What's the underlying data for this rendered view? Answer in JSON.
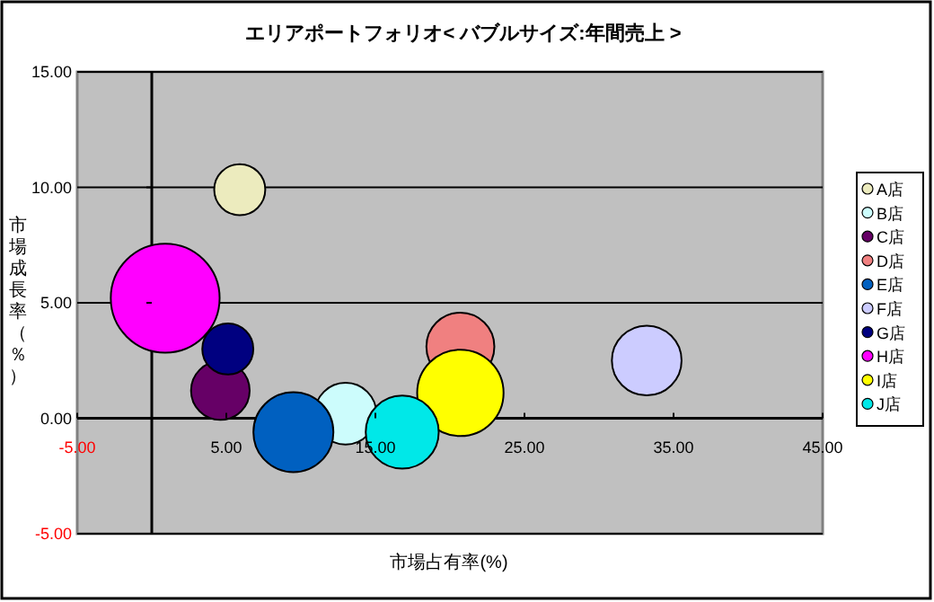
{
  "chart_data": {
    "type": "bubble",
    "title": "エリアポートフォリオ< バブルサイズ:年間売上 >",
    "xlabel": "市場占有率(%)",
    "ylabel": "市場成長率（％）",
    "xlim": [
      -5,
      45
    ],
    "ylim": [
      -5,
      15
    ],
    "xticks": [
      {
        "value": -5,
        "label": "-5.00"
      },
      {
        "value": 5,
        "label": "5.00"
      },
      {
        "value": 15,
        "label": "15.00"
      },
      {
        "value": 25,
        "label": "25.00"
      },
      {
        "value": 35,
        "label": "35.00"
      },
      {
        "value": 45,
        "label": "45.00"
      }
    ],
    "yticks": [
      {
        "value": -5,
        "label": "-5.00"
      },
      {
        "value": 0,
        "label": "0.00"
      },
      {
        "value": 5,
        "label": "5.00"
      },
      {
        "value": 10,
        "label": "10.00"
      },
      {
        "value": 15,
        "label": "15.00"
      }
    ],
    "grid": "y",
    "legend": "right",
    "series": [
      {
        "name": "A店",
        "color": "#ecebbe",
        "x": [
          5.9
        ],
        "values": [
          9.9
        ],
        "sizes": [
          0.22
        ]
      },
      {
        "name": "B店",
        "color": "#ccfcfc",
        "x": [
          13.0
        ],
        "values": [
          0.2
        ],
        "sizes": [
          0.32
        ]
      },
      {
        "name": "C店",
        "color": "#660066",
        "x": [
          4.6
        ],
        "values": [
          1.2
        ],
        "sizes": [
          0.29
        ]
      },
      {
        "name": "D店",
        "color": "#f08080",
        "x": [
          20.7
        ],
        "values": [
          3.1
        ],
        "sizes": [
          0.39
        ]
      },
      {
        "name": "E店",
        "color": "#0060c0",
        "x": [
          9.5
        ],
        "values": [
          -0.6
        ],
        "sizes": [
          0.54
        ]
      },
      {
        "name": "F店",
        "color": "#ccccff",
        "x": [
          33.2
        ],
        "values": [
          2.5
        ],
        "sizes": [
          0.41
        ]
      },
      {
        "name": "G店",
        "color": "#000080",
        "x": [
          5.1
        ],
        "values": [
          3.0
        ],
        "sizes": [
          0.22
        ]
      },
      {
        "name": "H店",
        "color": "#ff00ff",
        "x": [
          0.9
        ],
        "values": [
          5.2
        ],
        "sizes": [
          1
        ]
      },
      {
        "name": "I店",
        "color": "#ffff00",
        "x": [
          20.7
        ],
        "values": [
          1.1
        ],
        "sizes": [
          0.63
        ]
      },
      {
        "name": "J店",
        "color": "#00e8e8",
        "x": [
          16.8
        ],
        "values": [
          -0.6
        ],
        "sizes": [
          0.45
        ]
      }
    ]
  }
}
